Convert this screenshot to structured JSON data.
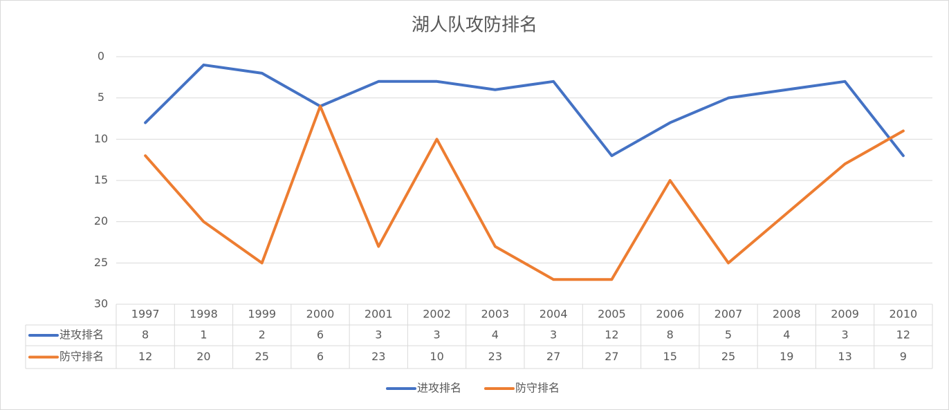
{
  "chart_data": {
    "type": "line",
    "title": "湖人队攻防排名",
    "categories": [
      "1997",
      "1998",
      "1999",
      "2000",
      "2001",
      "2002",
      "2003",
      "2004",
      "2005",
      "2006",
      "2007",
      "2008",
      "2009",
      "2010"
    ],
    "series": [
      {
        "name": "进攻排名",
        "color": "#4472c4",
        "values": [
          8,
          1,
          2,
          6,
          3,
          3,
          4,
          3,
          12,
          8,
          5,
          4,
          3,
          12
        ]
      },
      {
        "name": "防守排名",
        "color": "#ed7d31",
        "values": [
          12,
          20,
          25,
          6,
          23,
          10,
          23,
          27,
          27,
          15,
          25,
          19,
          13,
          9
        ]
      }
    ],
    "ylim": [
      0,
      30
    ],
    "yticks": [
      0,
      5,
      10,
      15,
      20,
      25,
      30
    ],
    "y_reversed": true,
    "grid": true,
    "data_table": true,
    "legend": "bottom"
  }
}
